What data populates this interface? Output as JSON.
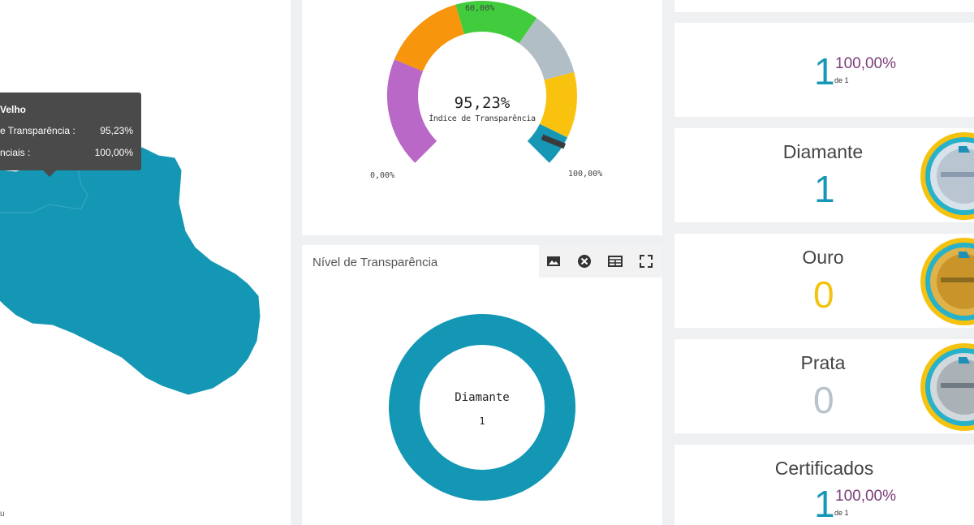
{
  "map": {
    "tooltip": {
      "title": "Velho",
      "rows": [
        {
          "label": "e Transparência :",
          "value": "95,23%"
        },
        {
          "label": "nciais :",
          "value": "100,00%"
        }
      ]
    },
    "attribution": "u",
    "region_color": "#1497b4"
  },
  "gauge": {
    "value": "95,23%",
    "caption": "Índice de Transparência",
    "tick_min": "0,00%",
    "tick_mid": "60,00%",
    "tick_max": "100,00%",
    "needle_percent": 95.23,
    "colors": [
      "#b968c7",
      "#f7950c",
      "#41cc3d",
      "#b2bec6",
      "#f9c20f",
      "#1797b6"
    ]
  },
  "donut": {
    "title": "Nível de Transparência",
    "center_label": "Diamante",
    "center_value": "1",
    "color": "#1497b4",
    "toolbar": [
      "image-icon",
      "close-circle-icon",
      "table-icon",
      "fullscreen-icon"
    ]
  },
  "cards": {
    "summary": {
      "number": "1",
      "percent": "100,00%",
      "of": "de 1"
    },
    "diamante": {
      "title": "Diamante",
      "number": "1",
      "color": "#1797b6",
      "medal": "diamond-medal-icon"
    },
    "ouro": {
      "title": "Ouro",
      "number": "0",
      "color": "#f2c40f",
      "medal": "gold-medal-icon"
    },
    "prata": {
      "title": "Prata",
      "number": "0",
      "color": "#b8c3cb",
      "medal": "silver-medal-icon"
    },
    "certificados": {
      "title": "Certificados",
      "number": "1",
      "percent": "100,00%",
      "of": "de 1"
    }
  }
}
